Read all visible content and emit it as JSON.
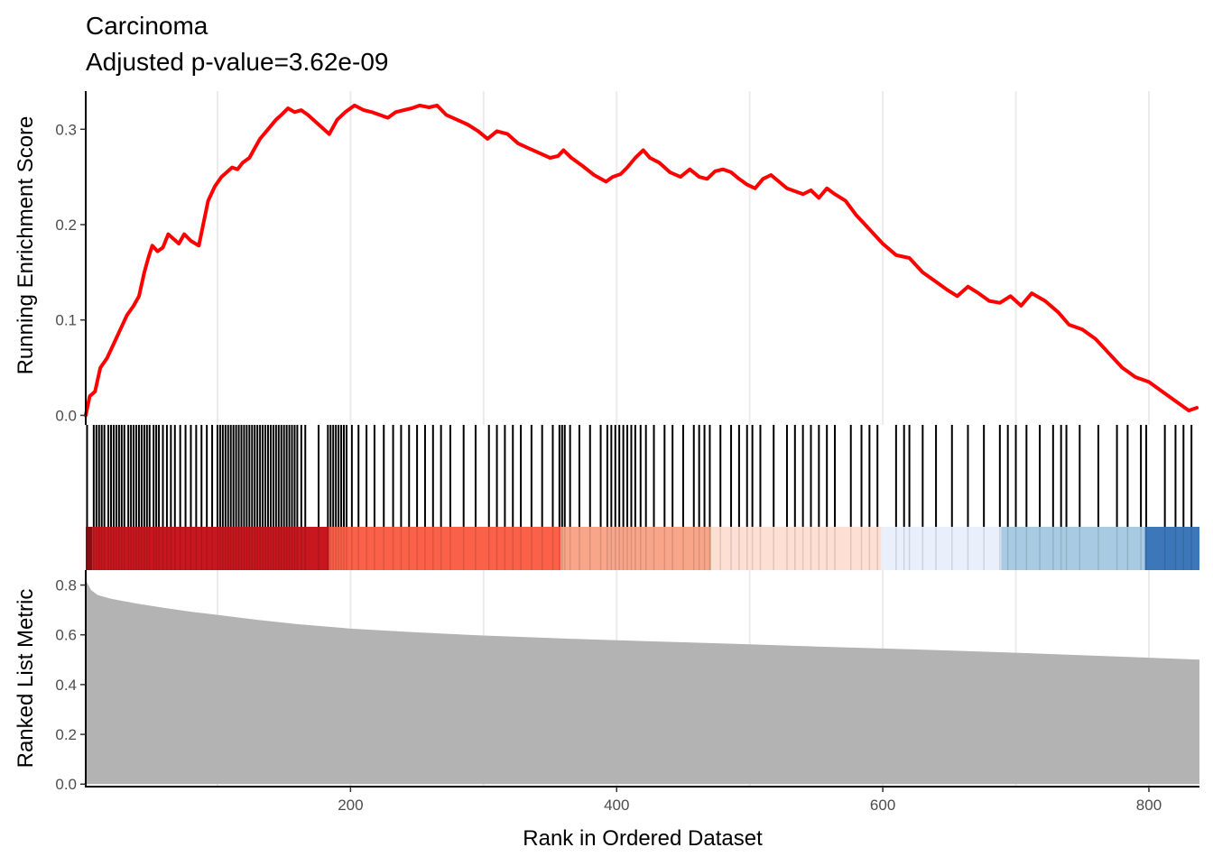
{
  "chart_data": {
    "type": "line",
    "title": "Carcinoma",
    "subtitle": "Adjusted p-value=3.62e-09",
    "xlabel": "Rank in Ordered Dataset",
    "xlim": [
      1,
      838
    ],
    "x_ticks": [
      200,
      400,
      600,
      800
    ],
    "grid": "vertical-major",
    "colors": {
      "es_line": "#ff0000",
      "hits": "#000000",
      "metric_fill": "#b3b3b3",
      "grid": "#ebebeb"
    },
    "panels": [
      {
        "name": "running-enrichment-score",
        "ylabel": "Running Enrichment Score",
        "ylim": [
          -0.01,
          0.34
        ],
        "y_ticks": [
          0.0,
          0.1,
          0.2,
          0.3
        ],
        "y_tick_labels": [
          "0.0",
          "0.1",
          "0.2",
          "0.3"
        ],
        "series": [
          {
            "x": [
              1,
              4,
              8,
              12,
              17,
              22,
              27,
              32,
              37,
              41,
              45,
              48,
              51,
              55,
              59,
              63,
              67,
              71,
              75,
              80,
              86,
              93,
              98,
              103,
              107,
              111,
              115,
              119,
              124,
              128,
              132,
              138,
              144,
              148,
              153,
              158,
              163,
              168,
              184,
              190,
              196,
              203,
              210,
              216,
              222,
              228,
              234,
              240,
              246,
              252,
              259,
              265,
              272,
              280,
              288,
              296,
              303,
              310,
              318,
              326,
              334,
              342,
              350,
              356,
              360,
              366,
              374,
              383,
              392,
              397,
              403,
              408,
              414,
              420,
              425,
              432,
              440,
              448,
              455,
              462,
              468,
              474,
              480,
              486,
              492,
              498,
              504,
              510,
              516,
              522,
              528,
              534,
              540,
              546,
              552,
              558,
              564,
              572,
              580,
              590,
              600,
              610,
              620,
              630,
              640,
              648,
              656,
              664,
              672,
              680,
              688,
              696,
              704,
              712,
              722,
              732,
              740,
              750,
              760,
              770,
              780,
              790,
              800,
              810,
              820,
              830,
              836
            ],
            "y": [
              0.0,
              0.02,
              0.025,
              0.05,
              0.06,
              0.075,
              0.09,
              0.105,
              0.115,
              0.125,
              0.15,
              0.165,
              0.178,
              0.172,
              0.176,
              0.19,
              0.185,
              0.18,
              0.19,
              0.183,
              0.178,
              0.225,
              0.24,
              0.25,
              0.255,
              0.26,
              0.258,
              0.265,
              0.27,
              0.28,
              0.29,
              0.3,
              0.31,
              0.315,
              0.322,
              0.318,
              0.32,
              0.315,
              0.295,
              0.31,
              0.318,
              0.325,
              0.32,
              0.318,
              0.315,
              0.312,
              0.318,
              0.32,
              0.322,
              0.325,
              0.323,
              0.325,
              0.315,
              0.31,
              0.305,
              0.298,
              0.29,
              0.298,
              0.295,
              0.285,
              0.28,
              0.275,
              0.27,
              0.272,
              0.278,
              0.27,
              0.262,
              0.252,
              0.245,
              0.25,
              0.253,
              0.26,
              0.27,
              0.278,
              0.27,
              0.265,
              0.255,
              0.25,
              0.258,
              0.25,
              0.248,
              0.256,
              0.258,
              0.255,
              0.248,
              0.242,
              0.238,
              0.248,
              0.252,
              0.245,
              0.238,
              0.235,
              0.232,
              0.236,
              0.228,
              0.238,
              0.232,
              0.225,
              0.21,
              0.195,
              0.18,
              0.168,
              0.165,
              0.15,
              0.14,
              0.132,
              0.125,
              0.135,
              0.128,
              0.12,
              0.118,
              0.125,
              0.115,
              0.128,
              0.12,
              0.108,
              0.095,
              0.09,
              0.08,
              0.065,
              0.05,
              0.04,
              0.035,
              0.025,
              0.015,
              0.005,
              0.008
            ]
          }
        ]
      },
      {
        "name": "gene-hits",
        "hits": [
          2,
          7,
          9,
          11,
          13,
          15,
          18,
          20,
          22,
          24,
          26,
          28,
          30,
          33,
          35,
          37,
          39,
          41,
          43,
          45,
          47,
          49,
          52,
          54,
          56,
          59,
          62,
          65,
          68,
          72,
          76,
          80,
          84,
          88,
          92,
          96,
          100,
          102,
          104,
          106,
          108,
          110,
          112,
          114,
          116,
          118,
          120,
          122,
          124,
          126,
          128,
          130,
          132,
          134,
          136,
          138,
          140,
          142,
          144,
          146,
          148,
          150,
          152,
          154,
          156,
          158,
          160,
          163,
          166,
          176,
          183,
          185,
          187,
          189,
          191,
          193,
          195,
          197,
          201,
          206,
          212,
          218,
          225,
          232,
          238,
          244,
          250,
          256,
          262,
          268,
          275,
          285,
          294,
          304,
          310,
          316,
          322,
          328,
          336,
          344,
          352,
          357,
          359,
          361,
          365,
          372,
          380,
          388,
          393,
          396,
          399,
          402,
          405,
          408,
          411,
          414,
          418,
          422,
          428,
          436,
          442,
          450,
          458,
          462,
          466,
          470,
          478,
          486,
          492,
          498,
          502,
          508,
          518,
          528,
          534,
          540,
          546,
          552,
          558,
          564,
          576,
          584,
          590,
          596,
          610,
          616,
          620,
          630,
          640,
          652,
          664,
          676,
          688,
          694,
          700,
          708,
          718,
          728,
          734,
          738,
          748,
          762,
          776,
          784,
          794,
          798,
          812,
          820,
          826,
          832
        ]
      },
      {
        "name": "rank-color-bar",
        "segments": [
          {
            "start": 1,
            "end": 6,
            "color": "#8b0d14"
          },
          {
            "start": 6,
            "end": 184,
            "color": "#c9171f"
          },
          {
            "start": 184,
            "end": 358,
            "color": "#fa6148"
          },
          {
            "start": 358,
            "end": 471,
            "color": "#f9a58a"
          },
          {
            "start": 471,
            "end": 599,
            "color": "#fde0d3"
          },
          {
            "start": 599,
            "end": 689,
            "color": "#eaf0fb"
          },
          {
            "start": 689,
            "end": 797,
            "color": "#a8cbe3"
          },
          {
            "start": 797,
            "end": 838,
            "color": "#3c78b9"
          }
        ]
      },
      {
        "name": "ranked-list-metric",
        "ylabel": "Ranked List Metric",
        "ylim": [
          -0.01,
          0.86
        ],
        "y_ticks": [
          0.0,
          0.2,
          0.4,
          0.6,
          0.8
        ],
        "y_tick_labels": [
          "0.0",
          "0.2",
          "0.4",
          "0.6",
          "0.8"
        ],
        "metric": {
          "x": [
            1,
            3,
            5,
            10,
            20,
            40,
            60,
            80,
            100,
            130,
            160,
            200,
            250,
            300,
            350,
            400,
            450,
            500,
            550,
            600,
            650,
            700,
            750,
            800,
            838
          ],
          "y": [
            0.82,
            0.8,
            0.78,
            0.76,
            0.745,
            0.725,
            0.708,
            0.693,
            0.68,
            0.66,
            0.643,
            0.625,
            0.61,
            0.597,
            0.587,
            0.578,
            0.57,
            0.562,
            0.553,
            0.545,
            0.537,
            0.528,
            0.518,
            0.508,
            0.5
          ]
        }
      }
    ]
  }
}
